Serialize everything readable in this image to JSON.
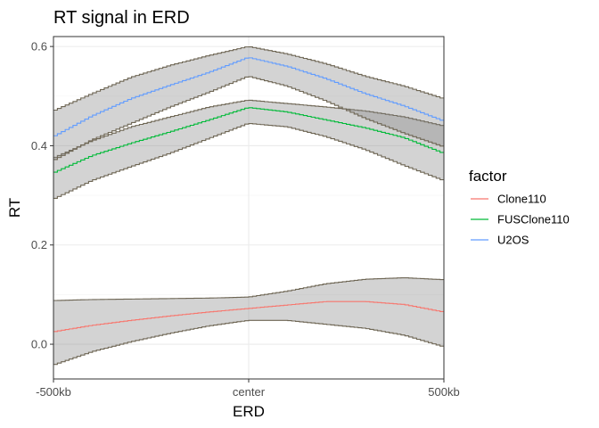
{
  "chart_data": {
    "type": "line",
    "title": "RT signal in ERD",
    "xlabel": "ERD",
    "ylabel": "RT",
    "x_ticks": [
      "-500kb",
      "center",
      "500kb"
    ],
    "x": [
      -500,
      -400,
      -300,
      -200,
      -100,
      0,
      100,
      200,
      300,
      400,
      500
    ],
    "y_ticks": [
      "0.0",
      "0.2",
      "0.4",
      "0.6"
    ],
    "y_tick_values": [
      0.0,
      0.2,
      0.4,
      0.6
    ],
    "ylim": [
      -0.07,
      0.62
    ],
    "grid": true,
    "ribbons": true,
    "legend_title": "factor",
    "legend_position": "right",
    "series": [
      {
        "name": "Clone110",
        "color": "#F8766D",
        "values": [
          0.025,
          0.038,
          0.048,
          0.057,
          0.065,
          0.072,
          0.079,
          0.086,
          0.086,
          0.08,
          0.065
        ],
        "lower": [
          -0.042,
          -0.015,
          0.005,
          0.022,
          0.037,
          0.048,
          0.048,
          0.04,
          0.032,
          0.018,
          -0.005
        ],
        "upper": [
          0.088,
          0.09,
          0.091,
          0.092,
          0.093,
          0.095,
          0.107,
          0.122,
          0.131,
          0.134,
          0.13
        ]
      },
      {
        "name": "FUSClone110",
        "color": "#00BA38",
        "values": [
          0.345,
          0.38,
          0.405,
          0.428,
          0.452,
          0.477,
          0.468,
          0.452,
          0.436,
          0.416,
          0.385
        ],
        "lower": [
          0.292,
          0.33,
          0.358,
          0.385,
          0.415,
          0.445,
          0.438,
          0.418,
          0.392,
          0.36,
          0.33
        ],
        "upper": [
          0.375,
          0.41,
          0.438,
          0.458,
          0.478,
          0.492,
          0.485,
          0.478,
          0.47,
          0.458,
          0.44
        ]
      },
      {
        "name": "U2OS",
        "color": "#619CFF",
        "values": [
          0.418,
          0.46,
          0.495,
          0.522,
          0.548,
          0.578,
          0.56,
          0.535,
          0.505,
          0.48,
          0.45
        ],
        "lower": [
          0.37,
          0.412,
          0.445,
          0.478,
          0.508,
          0.54,
          0.52,
          0.49,
          0.455,
          0.425,
          0.398
        ],
        "upper": [
          0.47,
          0.505,
          0.538,
          0.562,
          0.582,
          0.6,
          0.585,
          0.565,
          0.54,
          0.52,
          0.495
        ]
      }
    ]
  }
}
